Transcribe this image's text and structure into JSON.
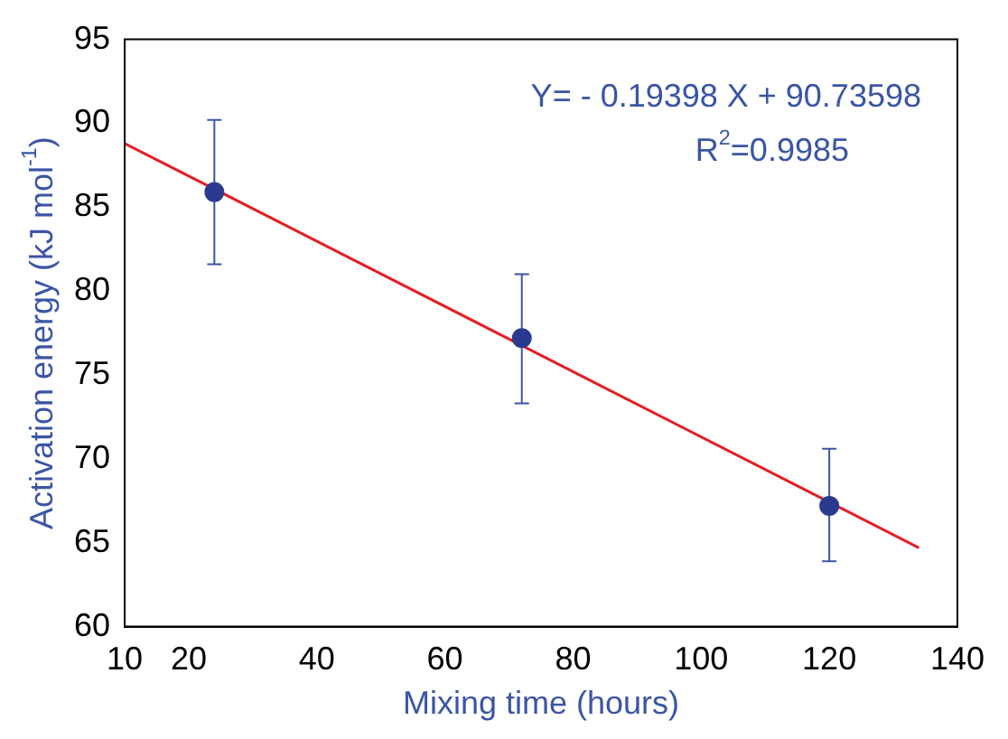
{
  "chart_data": {
    "type": "scatter",
    "xlabel": "Mixing time (hours)",
    "ylabel": "Activation energy (kJ mol$^{-1}$)",
    "series": [
      {
        "color": "#2b3a8f",
        "marker": "circle",
        "x": [
          24,
          72,
          120
        ],
        "values": [
          85.9,
          77.2,
          67.2
        ],
        "errors": [
          [
            81.6,
            90.2
          ],
          [
            73.3,
            81.0
          ],
          [
            63.9,
            70.6
          ]
        ]
      },
      {
        "type": "line",
        "color": "#e31e24",
        "marker": "none",
        "line_style": "solid",
        "x": [
          10,
          134
        ],
        "values": [
          88.8,
          64.7
        ]
      }
    ],
    "annotations": [
      "Y= - 0.19398 X + 90.73598",
      "R$^{2}$=0.9985"
    ],
    "xlim": [
      10,
      140
    ],
    "xticks": [
      10,
      20,
      40,
      60,
      80,
      100,
      120,
      140
    ],
    "ylim": [
      60,
      95
    ],
    "yticks": [
      60,
      65,
      70,
      75,
      80,
      85,
      90,
      95
    ],
    "grid": false,
    "legend": false
  }
}
